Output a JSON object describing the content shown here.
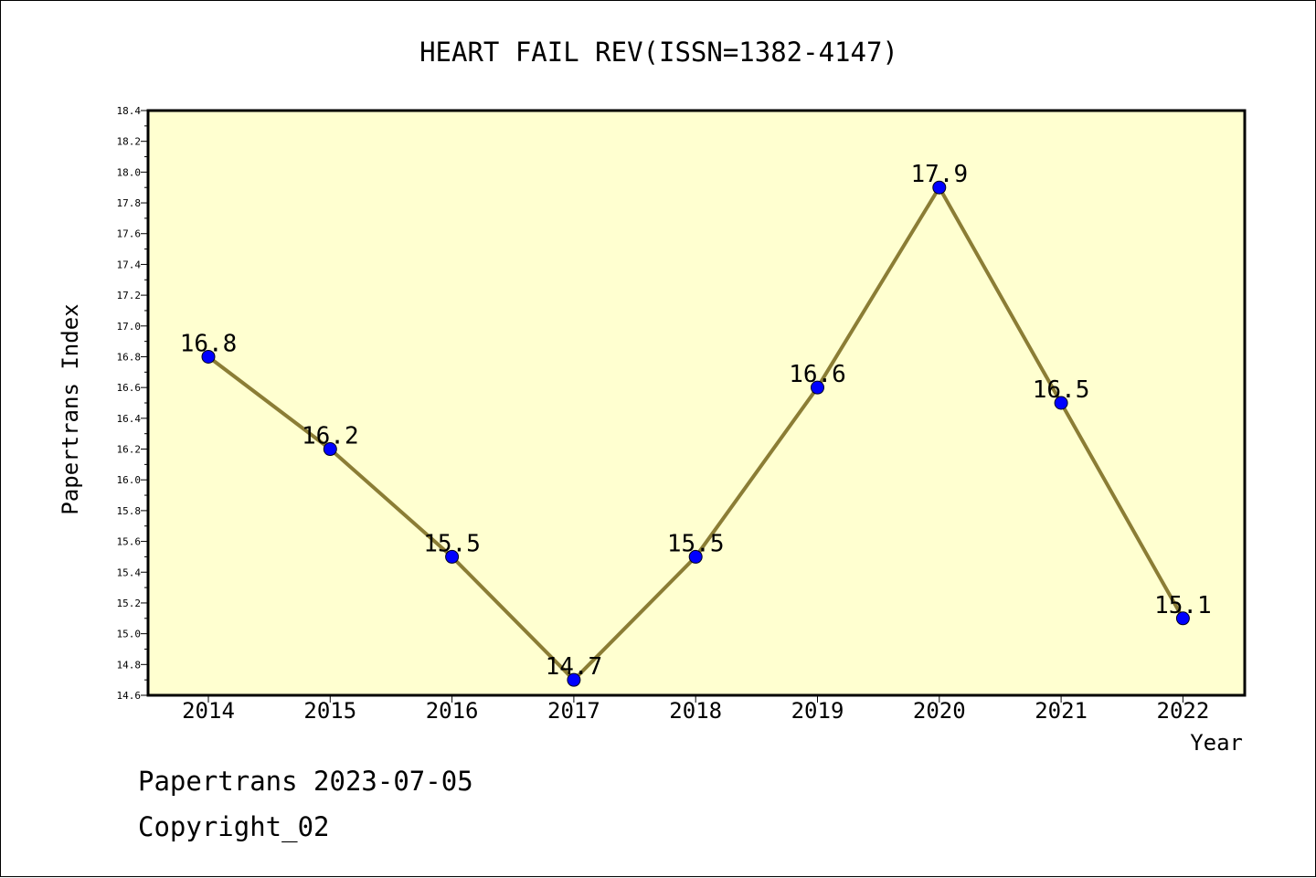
{
  "chart_data": {
    "type": "line",
    "title": "HEART FAIL REV(ISSN=1382-4147)",
    "xlabel": "Year",
    "ylabel": "Papertrans Index",
    "categories": [
      "2014",
      "2015",
      "2016",
      "2017",
      "2018",
      "2019",
      "2020",
      "2021",
      "2022"
    ],
    "series": [
      {
        "values": [
          16.8,
          16.2,
          15.5,
          14.7,
          15.5,
          16.6,
          17.9,
          16.5,
          15.1
        ],
        "labels": [
          "16.8",
          "16.2",
          "15.5",
          "14.7",
          "15.5",
          "16.6",
          "17.9",
          "16.5",
          "15.1"
        ]
      }
    ],
    "ylim": [
      14.6,
      18.4
    ],
    "yticks": [
      "14.6",
      "14.8",
      "15.0",
      "15.2",
      "15.4",
      "15.6",
      "15.8",
      "16.0",
      "16.2",
      "16.4",
      "16.6",
      "16.8",
      "17.0",
      "17.2",
      "17.4",
      "17.6",
      "17.8",
      "18.0",
      "18.2",
      "18.4"
    ],
    "grid": false,
    "colors": {
      "plot_background": "#FFFFD0",
      "line": "#8B7D35",
      "marker": "#0000FF"
    }
  },
  "footer": {
    "line1": "Papertrans 2023-07-05",
    "line2": "Copyright_02"
  }
}
